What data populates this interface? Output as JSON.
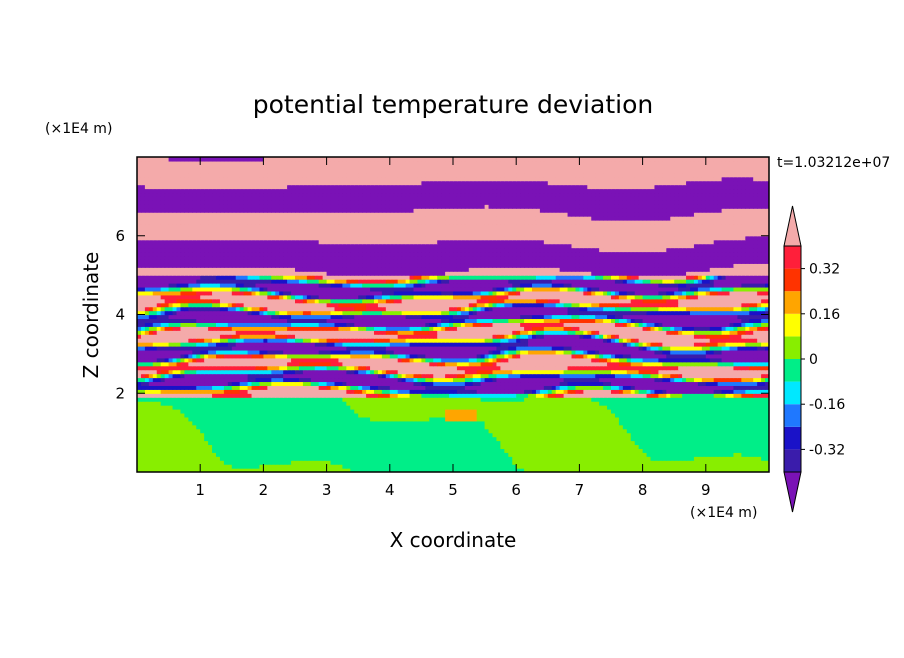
{
  "chart_data": {
    "type": "heatmap",
    "title": "potential temperature deviation",
    "xlabel": "X coordinate",
    "ylabel": "Z coordinate",
    "x_unit": "(×1E4 m)",
    "y_unit": "(×1E4 m)",
    "time_label": "t=1.03212e+07",
    "xlim": [
      0,
      10
    ],
    "ylim": [
      0,
      8
    ],
    "x_ticks": [
      1,
      2,
      3,
      4,
      5,
      6,
      7,
      8,
      9
    ],
    "y_ticks": [
      2,
      4,
      6
    ],
    "colorbar": {
      "levels": [
        -0.4,
        -0.32,
        -0.24,
        -0.16,
        -0.08,
        0,
        0.08,
        0.16,
        0.24,
        0.32,
        0.4
      ],
      "colors": [
        "#7a12b6",
        "#3a1cab",
        "#1a12c8",
        "#1f78ff",
        "#00e8ff",
        "#00ee88",
        "#88ee00",
        "#ffff00",
        "#ffa500",
        "#ff3300",
        "#ff1f3a",
        "#f4aaaa"
      ],
      "labeled_ticks": [
        0.32,
        0.16,
        0,
        -0.16,
        -0.32
      ],
      "tick_labels": [
        "0.32",
        "0.16",
        "0",
        "-0.16",
        "-0.32"
      ]
    },
    "field_description": {
      "lower_region": {
        "z_range": [
          0,
          2
        ],
        "dominant_values": [
          0,
          0.08
        ]
      },
      "mixed_region": {
        "z_range": [
          2,
          5
        ],
        "dominant_values": [
          -0.4,
          0.4
        ]
      },
      "upper_region": {
        "z_range": [
          5,
          8
        ],
        "dominant_values": [
          -0.4,
          0.4
        ]
      }
    }
  }
}
